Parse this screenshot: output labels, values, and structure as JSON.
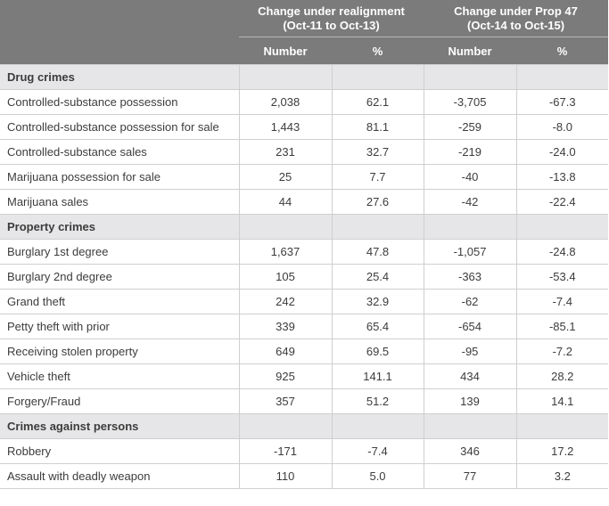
{
  "header": {
    "group1": {
      "line1": "Change under realignment",
      "line2": "(Oct-11 to Oct-13)"
    },
    "group2": {
      "line1": "Change under Prop 47",
      "line2": "(Oct-14 to Oct-15)"
    },
    "sub": [
      "Number",
      "%",
      "Number",
      "%"
    ]
  },
  "sections": [
    {
      "title": "Drug crimes",
      "rows": [
        [
          "Controlled-substance possession",
          "2,038",
          "62.1",
          "-3,705",
          "-67.3"
        ],
        [
          "Controlled-substance possession for sale",
          "1,443",
          "81.1",
          "-259",
          "-8.0"
        ],
        [
          "Controlled-substance sales",
          "231",
          "32.7",
          "-219",
          "-24.0"
        ],
        [
          "Marijuana possession for sale",
          "25",
          "7.7",
          "-40",
          "-13.8"
        ],
        [
          "Marijuana sales",
          "44",
          "27.6",
          "-42",
          "-22.4"
        ]
      ]
    },
    {
      "title": "Property crimes",
      "rows": [
        [
          "Burglary 1st degree",
          "1,637",
          "47.8",
          "-1,057",
          "-24.8"
        ],
        [
          "Burglary 2nd degree",
          "105",
          "25.4",
          "-363",
          "-53.4"
        ],
        [
          "Grand theft",
          "242",
          "32.9",
          "-62",
          "-7.4"
        ],
        [
          "Petty theft with prior",
          "339",
          "65.4",
          "-654",
          "-85.1"
        ],
        [
          "Receiving stolen property",
          "649",
          "69.5",
          "-95",
          "-7.2"
        ],
        [
          "Vehicle theft",
          "925",
          "141.1",
          "434",
          "28.2"
        ],
        [
          "Forgery/Fraud",
          "357",
          "51.2",
          "139",
          "14.1"
        ]
      ]
    },
    {
      "title": "Crimes against persons",
      "rows": [
        [
          "Robbery",
          "-171",
          "-7.4",
          "346",
          "17.2"
        ],
        [
          "Assault with deadly weapon",
          "110",
          "5.0",
          "77",
          "3.2"
        ]
      ]
    }
  ]
}
